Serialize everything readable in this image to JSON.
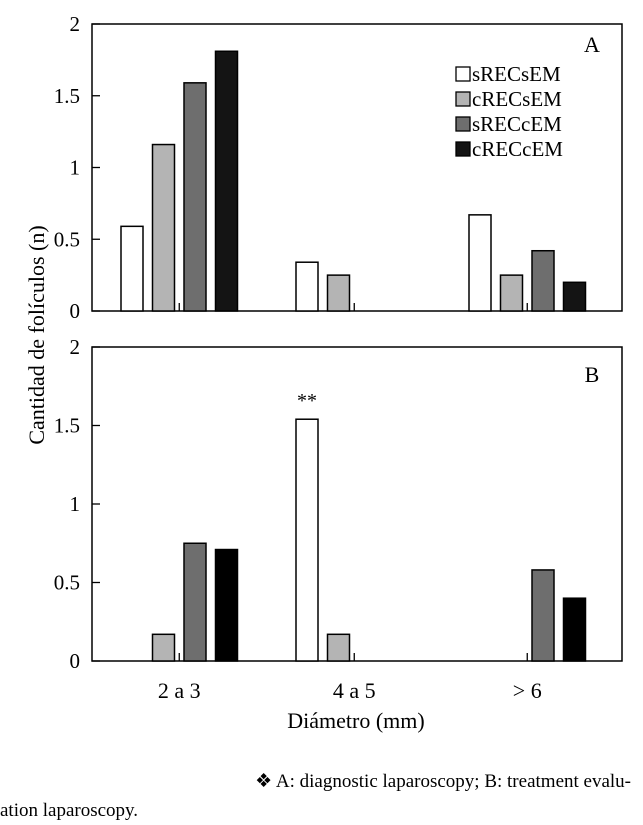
{
  "chart_data": [
    {
      "panel": "A",
      "type": "bar",
      "categories": [
        "2 a 3",
        "4 a 5",
        "> 6"
      ],
      "series": [
        {
          "name": "sRECsEM",
          "color": "#ffffff",
          "values": [
            0.59,
            0.34,
            0.67
          ]
        },
        {
          "name": "cRECsEM",
          "color": "#b4b4b4",
          "values": [
            1.16,
            0.25,
            0.25
          ]
        },
        {
          "name": "sRECcEM",
          "color": "#6e6e6e",
          "values": [
            1.59,
            0,
            0.42
          ]
        },
        {
          "name": "cRECcEM",
          "color": "#141414",
          "values": [
            1.81,
            0,
            0.2
          ]
        }
      ],
      "ylim": [
        0,
        2
      ],
      "yticks": [
        "0",
        "0.5",
        "1",
        "1.5",
        "2"
      ],
      "legend_position": "top-right",
      "annotations": []
    },
    {
      "panel": "B",
      "type": "bar",
      "categories": [
        "2 a 3",
        "4 a 5",
        "> 6"
      ],
      "series": [
        {
          "name": "sRECsEM",
          "color": "#ffffff",
          "values": [
            0,
            1.54,
            0
          ]
        },
        {
          "name": "cRECsEM",
          "color": "#b4b4b4",
          "values": [
            0.17,
            0.17,
            0
          ]
        },
        {
          "name": "sRECcEM",
          "color": "#6e6e6e",
          "values": [
            0.75,
            0,
            0.58
          ]
        },
        {
          "name": "cRECcEM",
          "color": "#000000",
          "values": [
            0.71,
            0,
            0.4
          ]
        }
      ],
      "ylim": [
        0,
        2
      ],
      "yticks": [
        "0",
        "0.5",
        "1",
        "1.5",
        "2"
      ],
      "annotations": [
        {
          "text": "**",
          "category": "4 a 5",
          "series": "sRECsEM"
        }
      ]
    }
  ],
  "shared": {
    "ylabel": "Cantidad de folículos (n)",
    "xlabel": "Diámetro (mm)",
    "xtick_labels": [
      "2 a 3",
      "4 a 5",
      "> 6"
    ]
  },
  "caption": {
    "line1": "❖ A: diagnostic laparoscopy; B: treatment evalu-",
    "line2": "ation laparoscopy."
  }
}
